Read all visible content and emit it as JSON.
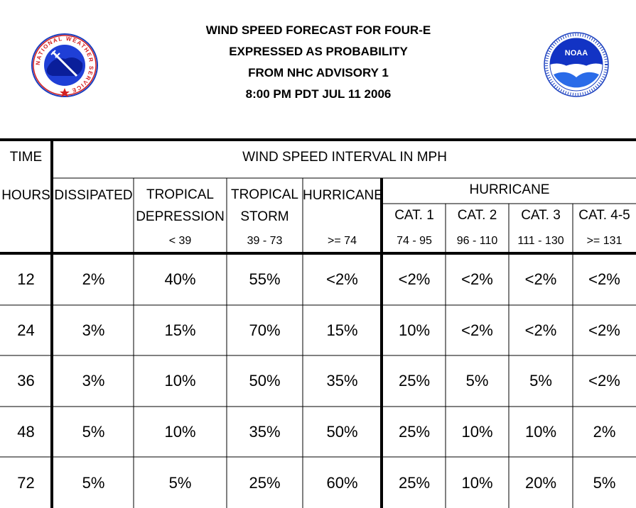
{
  "header": {
    "lines": [
      "WIND SPEED FORECAST FOR FOUR-E",
      "EXPRESSED AS PROBABILITY",
      "FROM NHC ADVISORY   1",
      "8:00 PM PDT JUL 11 2006"
    ],
    "left_logo": {
      "icon": "nws-logo",
      "text": "NATIONAL WEATHER SERVICE"
    },
    "right_logo": {
      "icon": "noaa-logo",
      "text": "NOAA"
    }
  },
  "table": {
    "time_label": "TIME",
    "interval_label": "WIND SPEED INTERVAL IN MPH",
    "hours_label": "HOURS",
    "hurricane_group_label": "HURRICANE",
    "columns": [
      {
        "line1": "DISSIPATED",
        "line2": "",
        "range": ""
      },
      {
        "line1": "TROPICAL",
        "line2": "DEPRESSION",
        "range": "< 39"
      },
      {
        "line1": "TROPICAL",
        "line2": "STORM",
        "range": "39 - 73"
      },
      {
        "line1": "HURRICANE",
        "line2": "",
        "range": ">= 74"
      },
      {
        "line1": "CAT. 1",
        "line2": "",
        "range": "74 - 95"
      },
      {
        "line1": "CAT. 2",
        "line2": "",
        "range": "96 - 110"
      },
      {
        "line1": "CAT. 3",
        "line2": "",
        "range": "111 - 130"
      },
      {
        "line1": "CAT. 4-5",
        "line2": "",
        "range": ">= 131"
      }
    ],
    "rows": [
      {
        "hours": "12",
        "values": [
          "2%",
          "40%",
          "55%",
          "<2%",
          "<2%",
          "<2%",
          "<2%",
          "<2%"
        ]
      },
      {
        "hours": "24",
        "values": [
          "3%",
          "15%",
          "70%",
          "15%",
          "10%",
          "<2%",
          "<2%",
          "<2%"
        ]
      },
      {
        "hours": "36",
        "values": [
          "3%",
          "10%",
          "50%",
          "35%",
          "25%",
          "5%",
          "5%",
          "<2%"
        ]
      },
      {
        "hours": "48",
        "values": [
          "5%",
          "10%",
          "35%",
          "50%",
          "25%",
          "10%",
          "10%",
          "2%"
        ]
      },
      {
        "hours": "72",
        "values": [
          "5%",
          "5%",
          "25%",
          "60%",
          "25%",
          "10%",
          "20%",
          "5%"
        ]
      }
    ]
  }
}
